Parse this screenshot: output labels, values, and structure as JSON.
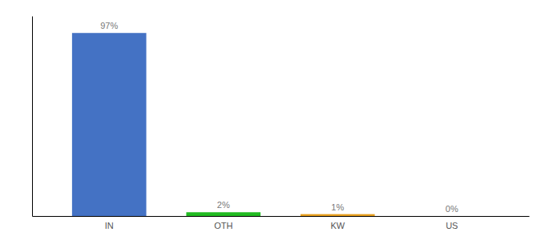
{
  "chart_data": {
    "type": "bar",
    "categories": [
      "IN",
      "OTH",
      "KW",
      "US"
    ],
    "values": [
      97,
      2,
      1,
      0
    ],
    "value_labels": [
      "97%",
      "2%",
      "1%",
      "0%"
    ],
    "data_labels": true,
    "colors": [
      "#4472C4",
      "#22BB22",
      "#E8A020",
      "#4472C4"
    ],
    "ylim": [
      0,
      106
    ],
    "tick_labels": "x",
    "grid": false
  }
}
